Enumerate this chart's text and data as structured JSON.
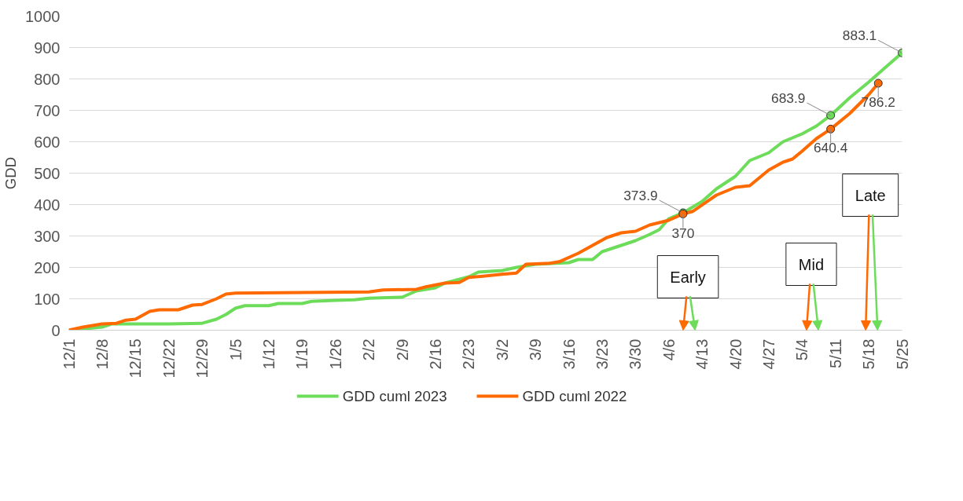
{
  "chart_data": {
    "type": "line",
    "ylabel": "GDD",
    "ylim": [
      0,
      1000
    ],
    "yticks": [
      0,
      100,
      200,
      300,
      400,
      500,
      600,
      700,
      800,
      900,
      1000
    ],
    "xlim": [
      "2022-12-01",
      "2023-05-25"
    ],
    "xticks": [
      {
        "value": "2022-12-01",
        "label": "12/1"
      },
      {
        "value": "2022-12-08",
        "label": "12/8"
      },
      {
        "value": "2022-12-15",
        "label": "12/15"
      },
      {
        "value": "2022-12-22",
        "label": "12/22"
      },
      {
        "value": "2022-12-29",
        "label": "12/29"
      },
      {
        "value": "2023-01-05",
        "label": "1/5"
      },
      {
        "value": "2023-01-12",
        "label": "1/12"
      },
      {
        "value": "2023-01-19",
        "label": "1/19"
      },
      {
        "value": "2023-01-26",
        "label": "1/26"
      },
      {
        "value": "2023-02-02",
        "label": "2/2"
      },
      {
        "value": "2023-02-09",
        "label": "2/9"
      },
      {
        "value": "2023-02-16",
        "label": "2/16"
      },
      {
        "value": "2023-02-23",
        "label": "2/23"
      },
      {
        "value": "2023-03-02",
        "label": "3/2"
      },
      {
        "value": "2023-03-09",
        "label": "3/9"
      },
      {
        "value": "2023-03-16",
        "label": "3/16"
      },
      {
        "value": "2023-03-23",
        "label": "3/23"
      },
      {
        "value": "2023-03-30",
        "label": "3/30"
      },
      {
        "value": "2023-04-06",
        "label": "4/6"
      },
      {
        "value": "2023-04-13",
        "label": "4/13"
      },
      {
        "value": "2023-04-20",
        "label": "4/20"
      },
      {
        "value": "2023-04-27",
        "label": "4/27"
      },
      {
        "value": "2023-05-04",
        "label": "5/4"
      },
      {
        "value": "2023-05-11",
        "label": "5/11"
      },
      {
        "value": "2023-05-18",
        "label": "5/18"
      },
      {
        "value": "2023-05-25",
        "label": "5/25"
      }
    ],
    "grid": "y",
    "legend": "bottom",
    "marker": "none",
    "line_style": "solid",
    "series": [
      {
        "name": "GDD cuml 2023",
        "color": "#6ddc5a",
        "x": [
          "2022-12-01",
          "2022-12-08",
          "2022-12-10",
          "2022-12-22",
          "2022-12-29",
          "2023-01-01",
          "2023-01-03",
          "2023-01-05",
          "2023-01-07",
          "2023-01-12",
          "2023-01-14",
          "2023-01-19",
          "2023-01-21",
          "2023-01-26",
          "2023-01-30",
          "2023-02-02",
          "2023-02-09",
          "2023-02-12",
          "2023-02-16",
          "2023-02-18",
          "2023-02-23",
          "2023-02-25",
          "2023-03-02",
          "2023-03-05",
          "2023-03-09",
          "2023-03-16",
          "2023-03-18",
          "2023-03-21",
          "2023-03-23",
          "2023-03-26",
          "2023-03-30",
          "2023-04-02",
          "2023-04-04",
          "2023-04-06",
          "2023-04-09",
          "2023-04-13",
          "2023-04-16",
          "2023-04-20",
          "2023-04-23",
          "2023-04-27",
          "2023-04-30",
          "2023-05-04",
          "2023-05-07",
          "2023-05-10",
          "2023-05-14",
          "2023-05-18",
          "2023-05-21",
          "2023-05-25"
        ],
        "values": [
          0,
          10,
          20,
          20,
          22,
          35,
          50,
          70,
          78,
          78,
          85,
          85,
          92,
          95,
          97,
          102,
          105,
          125,
          135,
          150,
          170,
          185,
          190,
          200,
          210,
          215,
          225,
          225,
          250,
          265,
          285,
          305,
          320,
          355,
          373.9,
          410,
          450,
          490,
          540,
          565,
          600,
          625,
          650,
          683.9,
          740,
          790,
          830,
          883.1
        ]
      },
      {
        "name": "GDD cuml 2022",
        "color": "#ff6a00",
        "x": [
          "2022-12-01",
          "2022-12-04",
          "2022-12-08",
          "2022-12-11",
          "2022-12-13",
          "2022-12-15",
          "2022-12-18",
          "2022-12-20",
          "2022-12-24",
          "2022-12-27",
          "2022-12-29",
          "2023-01-01",
          "2023-01-03",
          "2023-01-05",
          "2023-01-19",
          "2023-02-02",
          "2023-02-05",
          "2023-02-12",
          "2023-02-14",
          "2023-02-18",
          "2023-02-21",
          "2023-02-23",
          "2023-02-26",
          "2023-03-02",
          "2023-03-05",
          "2023-03-07",
          "2023-03-12",
          "2023-03-14",
          "2023-03-18",
          "2023-03-21",
          "2023-03-24",
          "2023-03-27",
          "2023-03-30",
          "2023-04-02",
          "2023-04-06",
          "2023-04-09",
          "2023-04-11",
          "2023-04-16",
          "2023-04-20",
          "2023-04-23",
          "2023-04-27",
          "2023-04-30",
          "2023-05-02",
          "2023-05-04",
          "2023-05-07",
          "2023-05-10",
          "2023-05-14",
          "2023-05-18",
          "2023-05-20"
        ],
        "values": [
          0,
          10,
          20,
          22,
          32,
          35,
          60,
          65,
          65,
          80,
          82,
          100,
          115,
          118,
          120,
          122,
          128,
          130,
          138,
          150,
          152,
          168,
          172,
          178,
          182,
          210,
          213,
          218,
          245,
          270,
          295,
          310,
          315,
          335,
          350,
          370,
          378,
          430,
          455,
          460,
          510,
          535,
          545,
          570,
          610,
          640.4,
          690,
          750,
          786.2
        ]
      },
      {
        "type": "scatter",
        "marker": "circle",
        "color": "#6ddc5a",
        "x": [
          "2023-04-09",
          "2023-05-10",
          "2023-05-25"
        ],
        "values": [
          373.9,
          683.9,
          883.1
        ],
        "value_labels": [
          "373.9",
          "683.9",
          "883.1"
        ]
      },
      {
        "type": "scatter",
        "marker": "circle",
        "color": "#ff6a00",
        "x": [
          "2023-04-09",
          "2023-05-10",
          "2023-05-20"
        ],
        "values": [
          370,
          640.4,
          786.2
        ],
        "value_labels": [
          "370",
          "640.4",
          "786.2"
        ]
      }
    ],
    "annotations": [
      "Early",
      "Mid",
      "Late"
    ]
  }
}
